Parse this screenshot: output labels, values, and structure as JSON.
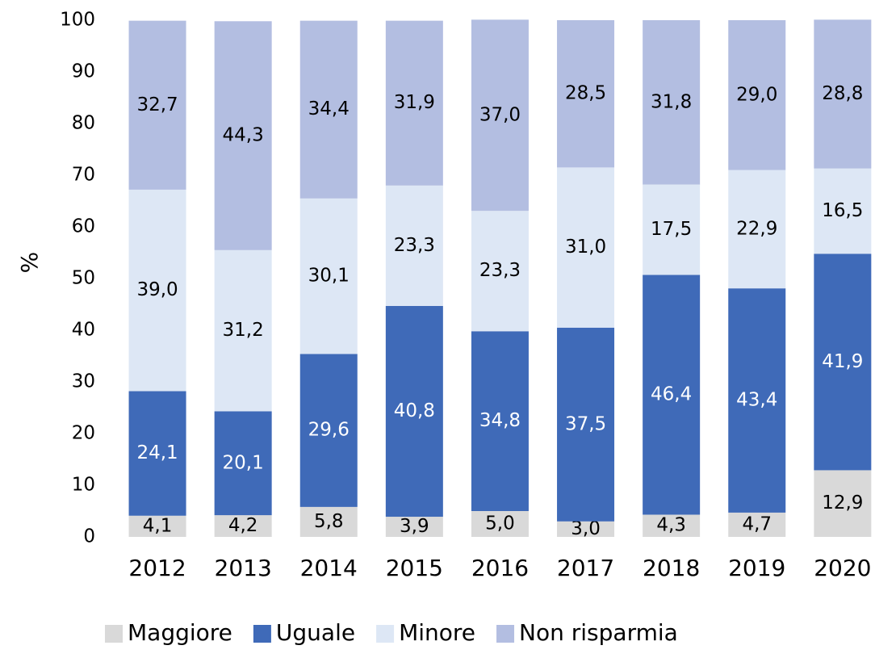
{
  "chart_data": {
    "type": "stacked_bar",
    "y_label": "%",
    "categories": [
      "2012",
      "2013",
      "2014",
      "2015",
      "2016",
      "2017",
      "2018",
      "2019",
      "2020"
    ],
    "series": [
      {
        "name": "Maggiore",
        "color": "#d9d9d9",
        "label_color": "#000000",
        "values": [
          4.1,
          4.2,
          5.8,
          3.9,
          5.0,
          3.0,
          4.3,
          4.7,
          12.9
        ],
        "value_labels": [
          "4,1",
          "4,2",
          "5,8",
          "3,9",
          "5,0",
          "3,0",
          "4,3",
          "4,7",
          "12,9"
        ]
      },
      {
        "name": "Uguale",
        "color": "#3f6ab8",
        "label_color": "#ffffff",
        "values": [
          24.1,
          20.1,
          29.6,
          40.8,
          34.8,
          37.5,
          46.4,
          43.4,
          41.9
        ],
        "value_labels": [
          "24,1",
          "20,1",
          "29,6",
          "40,8",
          "34,8",
          "37,5",
          "46,4",
          "43,4",
          "41,9"
        ]
      },
      {
        "name": "Minore",
        "color": "#dde7f5",
        "label_color": "#000000",
        "values": [
          39.0,
          31.2,
          30.1,
          23.3,
          23.3,
          31.0,
          17.5,
          22.9,
          16.5
        ],
        "value_labels": [
          "39,0",
          "31,2",
          "30,1",
          "23,3",
          "23,3",
          "31,0",
          "17,5",
          "22,9",
          "16,5"
        ]
      },
      {
        "name": "Non risparmia",
        "color": "#b3bee1",
        "label_color": "#000000",
        "values": [
          32.7,
          44.3,
          34.4,
          31.9,
          37.0,
          28.5,
          31.8,
          29.0,
          28.8
        ],
        "value_labels": [
          "32,7",
          "44,3",
          "34,4",
          "31,9",
          "37,0",
          "28,5",
          "31,8",
          "29,0",
          "28,8"
        ]
      }
    ],
    "ylim": [
      0,
      100
    ],
    "yticks": [
      0,
      10,
      20,
      30,
      40,
      50,
      60,
      70,
      80,
      90,
      100
    ],
    "grid": false,
    "legend": "bottom"
  }
}
